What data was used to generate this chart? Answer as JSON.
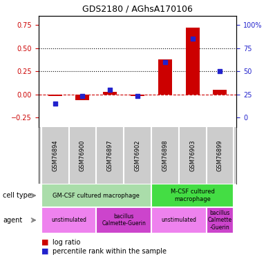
{
  "title": "GDS2180 / AGhsA170106",
  "samples": [
    "GSM76894",
    "GSM76900",
    "GSM76897",
    "GSM76902",
    "GSM76898",
    "GSM76903",
    "GSM76899"
  ],
  "log_ratio": [
    -0.02,
    -0.06,
    0.03,
    -0.02,
    0.38,
    0.72,
    0.05
  ],
  "percentile_pct": [
    15,
    23,
    30,
    23,
    60,
    85,
    50
  ],
  "bar_color": "#cc0000",
  "dot_color": "#2222cc",
  "yticks_left": [
    -0.25,
    0.0,
    0.25,
    0.5,
    0.75
  ],
  "yticks_right": [
    0,
    25,
    50,
    75,
    100
  ],
  "ylim_left": [
    -0.35,
    0.85
  ],
  "ylim_right": [
    -10,
    110
  ],
  "hline_values": [
    0.0,
    0.25,
    0.5
  ],
  "hline_styles": [
    "--",
    ":",
    ":"
  ],
  "hline_colors": [
    "#cc0000",
    "black",
    "black"
  ],
  "cell_type_groups": [
    {
      "label": "GM-CSF cultured macrophage",
      "start": 0,
      "end": 4,
      "color": "#aaddaa"
    },
    {
      "label": "M-CSF cultured\nmacrophage",
      "start": 4,
      "end": 7,
      "color": "#44dd44"
    }
  ],
  "agent_groups": [
    {
      "label": "unstimulated",
      "start": 0,
      "end": 2,
      "color": "#ee82ee"
    },
    {
      "label": "bacillus\nCalmette-Guerin",
      "start": 2,
      "end": 4,
      "color": "#cc44cc"
    },
    {
      "label": "unstimulated",
      "start": 4,
      "end": 6,
      "color": "#ee82ee"
    },
    {
      "label": "bacillus\nCalmette\n-Guerin",
      "start": 6,
      "end": 7,
      "color": "#cc44cc"
    }
  ],
  "legend_items": [
    {
      "label": "log ratio",
      "color": "#cc0000"
    },
    {
      "label": "percentile rank within the sample",
      "color": "#2222cc"
    }
  ],
  "ylabel_left_color": "#cc0000",
  "ylabel_right_color": "#2222cc",
  "label_bg_color": "#cccccc",
  "bar_width": 0.5
}
